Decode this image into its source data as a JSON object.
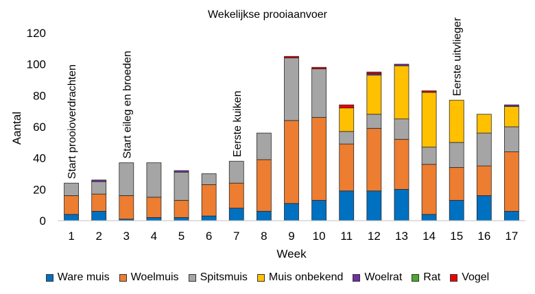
{
  "chart_data": {
    "type": "bar",
    "stacked": true,
    "title": "Wekelijkse prooiaanvoer",
    "xlabel": "Week",
    "ylabel": "Aantal",
    "ylim": [
      0,
      120
    ],
    "yticks": [
      0,
      20,
      40,
      60,
      80,
      100,
      120
    ],
    "grid": false,
    "legend_position": "bottom",
    "categories": [
      "1",
      "2",
      "3",
      "4",
      "5",
      "6",
      "7",
      "8",
      "9",
      "10",
      "11",
      "12",
      "13",
      "14",
      "15",
      "16",
      "17"
    ],
    "series": [
      {
        "name": "Ware muis",
        "color": "#0070C0",
        "values": [
          4,
          6,
          1,
          2,
          2,
          3,
          8,
          6,
          11,
          13,
          19,
          19,
          20,
          4,
          13,
          16,
          6
        ]
      },
      {
        "name": "Woelmuis",
        "color": "#ED7D31",
        "values": [
          12,
          11,
          15,
          13,
          11,
          20,
          16,
          33,
          53,
          53,
          30,
          40,
          32,
          32,
          21,
          19,
          38
        ]
      },
      {
        "name": "Spitsmuis",
        "color": "#A5A5A5",
        "values": [
          8,
          8,
          21,
          22,
          18,
          7,
          14,
          17,
          40,
          31,
          8,
          9,
          13,
          11,
          16,
          21,
          16
        ]
      },
      {
        "name": "Muis onbekend",
        "color": "#FFC000",
        "values": [
          0,
          0,
          0,
          0,
          0,
          0,
          0,
          0,
          0,
          0,
          15,
          25,
          34,
          35,
          27,
          12,
          13
        ]
      },
      {
        "name": "Woelrat",
        "color": "#7030A0",
        "values": [
          0,
          1,
          0,
          0,
          1,
          0,
          0,
          0,
          0,
          0,
          0,
          1,
          1,
          0,
          0,
          0,
          1
        ]
      },
      {
        "name": "Rat",
        "color": "#4EA72E",
        "values": [
          0,
          0,
          0,
          0,
          0,
          0,
          0,
          0,
          0,
          0,
          0,
          0,
          0,
          0,
          0,
          0,
          0
        ]
      },
      {
        "name": "Vogel",
        "color": "#EE0000",
        "values": [
          0,
          0,
          0,
          0,
          0,
          0,
          0,
          0,
          1,
          1,
          2,
          1,
          0,
          1,
          0,
          0,
          0
        ]
      }
    ],
    "annotations": [
      {
        "text": "Start prooioverdrachten",
        "category": "1"
      },
      {
        "text": "Start eileg en broeden",
        "category": "3"
      },
      {
        "text": "Eerste kuiken",
        "category": "7"
      },
      {
        "text": "Eerste uitvlieger",
        "category": "15"
      }
    ]
  }
}
